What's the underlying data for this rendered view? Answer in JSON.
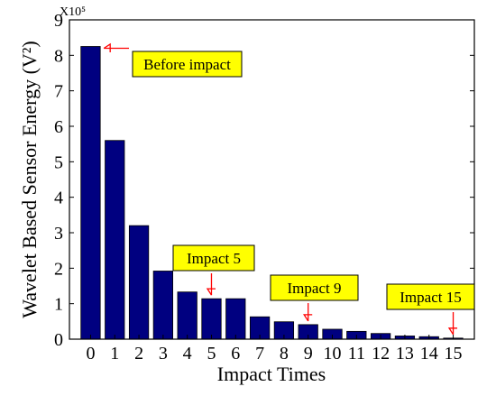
{
  "chart_data": {
    "type": "bar",
    "categories": [
      "0",
      "1",
      "2",
      "3",
      "4",
      "5",
      "6",
      "7",
      "8",
      "9",
      "10",
      "11",
      "12",
      "13",
      "14",
      "15"
    ],
    "values": [
      8.25,
      5.6,
      3.2,
      1.92,
      1.33,
      1.14,
      1.14,
      0.63,
      0.49,
      0.41,
      0.28,
      0.22,
      0.16,
      0.09,
      0.07,
      0.03
    ],
    "xlabel": "Impact Times",
    "ylabel": "Wavelet Based Sensor Energy (V²)",
    "ylim": [
      0,
      9
    ],
    "yticks": [
      0,
      1,
      2,
      3,
      4,
      5,
      6,
      7,
      8,
      9
    ],
    "y_exponent_label": "X10⁵",
    "bar_color": "#000080",
    "box_color": "#ffff00",
    "arrow_color": "#ff0000",
    "grid": false,
    "annotations": [
      {
        "text": "Before impact",
        "category": "0"
      },
      {
        "text": "Impact 5",
        "category": "5"
      },
      {
        "text": "Impact 9",
        "category": "9"
      },
      {
        "text": "Impact 15",
        "category": "15"
      }
    ]
  }
}
